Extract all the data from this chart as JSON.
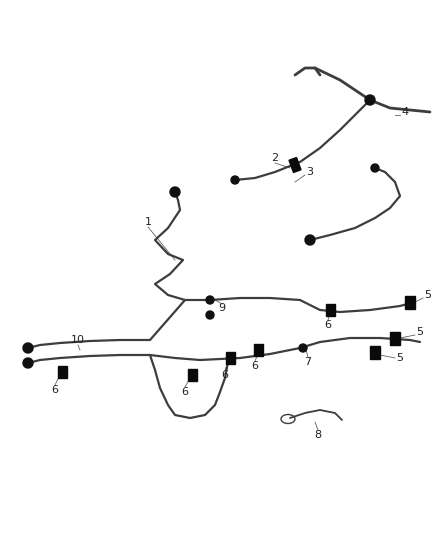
{
  "bg_color": "#ffffff",
  "line_color": "#3d3d3d",
  "line_width": 1.6,
  "label_color": "#222222",
  "label_fontsize": 8.0,
  "fig_width": 4.38,
  "fig_height": 5.33,
  "dpi": 100
}
